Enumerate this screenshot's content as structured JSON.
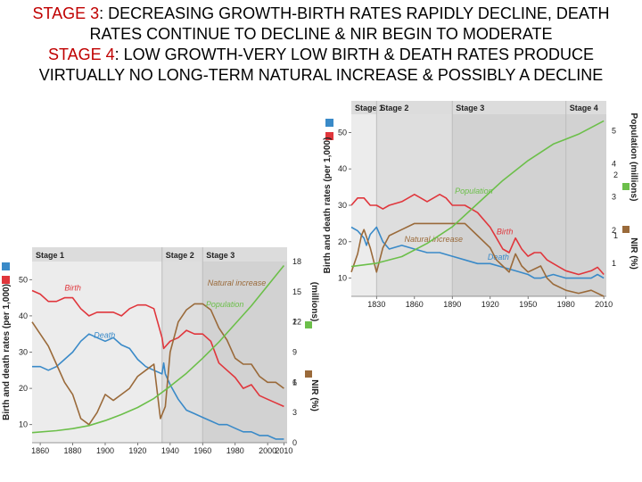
{
  "header": {
    "line1_stage": "STAGE 3",
    "line1_text": ": DECREASING GROWTH-BIRTH RATES RAPIDLY DECLINE, DEATH",
    "line2_text": "RATES CONTINUE TO DECLINE & NIR BEGIN TO MODERATE",
    "line3_stage": "STAGE 4",
    "line3_text": ": LOW GROWTH-VERY LOW BIRTH & DEATH RATES PRODUCE",
    "line4_text": "VIRTUALLY NO LONG-TERM NATURAL INCREASE & POSSIBLY A DECLINE"
  },
  "colors": {
    "birth": "#e0363c",
    "death": "#3a8ac8",
    "population": "#6cbf4a",
    "natural_increase": "#9a6a3a",
    "stage_band_light": "#ececec",
    "stage_band_mid": "#dedede",
    "stage_band_dark": "#d2d2d2"
  },
  "chart_data": [
    {
      "type": "line",
      "xlim": [
        1855,
        2012
      ],
      "ylim": [
        5,
        55
      ],
      "y2lim": [
        0,
        18
      ],
      "x_ticks": [
        1860,
        1880,
        1900,
        1920,
        1940,
        1960,
        1980,
        2000,
        2010
      ],
      "y_ticks": [
        10,
        20,
        30,
        40,
        50
      ],
      "pop_ticks": [
        0,
        3,
        6,
        9,
        12,
        15,
        18
      ],
      "nir_ticks": [
        1,
        2
      ],
      "ylabel": "Birth and death rates (per 1,000)",
      "y2label_pop": "(millions)",
      "y2label_nir": "NIR (%)",
      "stages": [
        {
          "label": "Stage 1",
          "start": 1855,
          "end": 1935
        },
        {
          "label": "Stage 2",
          "start": 1935,
          "end": 1960
        },
        {
          "label": "Stage 3",
          "start": 1960,
          "end": 2012
        }
      ],
      "series": [
        {
          "name": "Birth",
          "axis": "rate",
          "label_at": [
            1875,
            47
          ],
          "points": [
            [
              1855,
              47
            ],
            [
              1860,
              46
            ],
            [
              1865,
              44
            ],
            [
              1870,
              44
            ],
            [
              1875,
              45
            ],
            [
              1880,
              45
            ],
            [
              1885,
              42
            ],
            [
              1890,
              40
            ],
            [
              1895,
              41
            ],
            [
              1900,
              41
            ],
            [
              1905,
              41
            ],
            [
              1910,
              40
            ],
            [
              1915,
              42
            ],
            [
              1920,
              43
            ],
            [
              1925,
              43
            ],
            [
              1930,
              42
            ],
            [
              1935,
              34
            ],
            [
              1936,
              31
            ],
            [
              1940,
              33
            ],
            [
              1945,
              34
            ],
            [
              1950,
              36
            ],
            [
              1955,
              35
            ],
            [
              1960,
              35
            ],
            [
              1965,
              33
            ],
            [
              1970,
              27
            ],
            [
              1975,
              25
            ],
            [
              1980,
              23
            ],
            [
              1985,
              20
            ],
            [
              1990,
              21
            ],
            [
              1995,
              18
            ],
            [
              2000,
              17
            ],
            [
              2005,
              16
            ],
            [
              2010,
              15
            ]
          ]
        },
        {
          "name": "Death",
          "axis": "rate",
          "label_at": [
            1893,
            34
          ],
          "points": [
            [
              1855,
              26
            ],
            [
              1860,
              26
            ],
            [
              1865,
              25
            ],
            [
              1870,
              26
            ],
            [
              1875,
              28
            ],
            [
              1880,
              30
            ],
            [
              1885,
              33
            ],
            [
              1890,
              35
            ],
            [
              1895,
              34
            ],
            [
              1900,
              33
            ],
            [
              1905,
              34
            ],
            [
              1910,
              32
            ],
            [
              1915,
              31
            ],
            [
              1920,
              28
            ],
            [
              1925,
              26
            ],
            [
              1930,
              25
            ],
            [
              1935,
              24
            ],
            [
              1936,
              27
            ],
            [
              1937,
              24
            ],
            [
              1940,
              21
            ],
            [
              1945,
              17
            ],
            [
              1950,
              14
            ],
            [
              1955,
              13
            ],
            [
              1960,
              12
            ],
            [
              1965,
              11
            ],
            [
              1970,
              10
            ],
            [
              1975,
              10
            ],
            [
              1980,
              9
            ],
            [
              1985,
              8
            ],
            [
              1990,
              8
            ],
            [
              1995,
              7
            ],
            [
              2000,
              7
            ],
            [
              2005,
              6
            ],
            [
              2010,
              6
            ]
          ]
        },
        {
          "name": "Natural increase",
          "axis": "nir",
          "label_at": [
            1963,
            2.6
          ],
          "points": [
            [
              1855,
              2.0
            ],
            [
              1860,
              1.8
            ],
            [
              1865,
              1.6
            ],
            [
              1870,
              1.3
            ],
            [
              1875,
              1.0
            ],
            [
              1880,
              0.8
            ],
            [
              1885,
              0.4
            ],
            [
              1890,
              0.3
            ],
            [
              1895,
              0.5
            ],
            [
              1900,
              0.8
            ],
            [
              1905,
              0.7
            ],
            [
              1910,
              0.8
            ],
            [
              1915,
              0.9
            ],
            [
              1920,
              1.1
            ],
            [
              1925,
              1.2
            ],
            [
              1930,
              1.3
            ],
            [
              1934,
              0.4
            ],
            [
              1937,
              0.6
            ],
            [
              1940,
              1.5
            ],
            [
              1945,
              2.0
            ],
            [
              1950,
              2.2
            ],
            [
              1955,
              2.3
            ],
            [
              1960,
              2.3
            ],
            [
              1965,
              2.2
            ],
            [
              1970,
              1.9
            ],
            [
              1975,
              1.7
            ],
            [
              1980,
              1.4
            ],
            [
              1985,
              1.3
            ],
            [
              1990,
              1.3
            ],
            [
              1995,
              1.1
            ],
            [
              2000,
              1.0
            ],
            [
              2005,
              1.0
            ],
            [
              2010,
              0.9
            ]
          ]
        },
        {
          "name": "Population",
          "axis": "pop",
          "label_at": [
            1962,
            13.5
          ],
          "points": [
            [
              1855,
              1.0
            ],
            [
              1870,
              1.2
            ],
            [
              1880,
              1.4
            ],
            [
              1890,
              1.7
            ],
            [
              1900,
              2.2
            ],
            [
              1910,
              2.8
            ],
            [
              1920,
              3.5
            ],
            [
              1930,
              4.4
            ],
            [
              1940,
              5.6
            ],
            [
              1950,
              6.9
            ],
            [
              1960,
              8.4
            ],
            [
              1970,
              10.0
            ],
            [
              1980,
              11.8
            ],
            [
              1990,
              13.6
            ],
            [
              2000,
              15.6
            ],
            [
              2010,
              17.6
            ]
          ]
        }
      ]
    },
    {
      "type": "line",
      "xlim": [
        1810,
        2012
      ],
      "ylim": [
        5,
        55
      ],
      "y2lim": [
        0,
        5.5
      ],
      "x_ticks": [
        1830,
        1860,
        1890,
        1920,
        1950,
        1980,
        2010
      ],
      "y_ticks": [
        10,
        20,
        30,
        40,
        50
      ],
      "pop_ticks": [
        1,
        2,
        3,
        4,
        5
      ],
      "pop_tick_labels": [
        "1",
        "2",
        "3",
        "4",
        "5"
      ],
      "nir_ticks": [
        1,
        2
      ],
      "ylabel": "Birth and death rates (per 1,000)",
      "y2label_pop": "Population (millions)",
      "y2label_nir": "NIR (%)",
      "stages": [
        {
          "label": "Stage 1",
          "start": 1810,
          "end": 1830
        },
        {
          "label": "Stage 2",
          "start": 1830,
          "end": 1890
        },
        {
          "label": "Stage 3",
          "start": 1890,
          "end": 1980
        },
        {
          "label": "Stage 4",
          "start": 1980,
          "end": 2012
        }
      ],
      "series": [
        {
          "name": "Birth",
          "axis": "rate",
          "label_at": [
            1925,
            22
          ],
          "points": [
            [
              1810,
              30
            ],
            [
              1815,
              32
            ],
            [
              1820,
              32
            ],
            [
              1825,
              30
            ],
            [
              1830,
              30
            ],
            [
              1835,
              29
            ],
            [
              1840,
              30
            ],
            [
              1850,
              31
            ],
            [
              1860,
              33
            ],
            [
              1865,
              32
            ],
            [
              1870,
              31
            ],
            [
              1880,
              33
            ],
            [
              1885,
              32
            ],
            [
              1890,
              30
            ],
            [
              1900,
              30
            ],
            [
              1905,
              29
            ],
            [
              1910,
              28
            ],
            [
              1920,
              24
            ],
            [
              1925,
              21
            ],
            [
              1930,
              18
            ],
            [
              1935,
              17
            ],
            [
              1940,
              21
            ],
            [
              1945,
              18
            ],
            [
              1950,
              16
            ],
            [
              1955,
              17
            ],
            [
              1960,
              17
            ],
            [
              1965,
              15
            ],
            [
              1970,
              14
            ],
            [
              1975,
              13
            ],
            [
              1980,
              12
            ],
            [
              1990,
              11
            ],
            [
              2000,
              12
            ],
            [
              2005,
              13
            ],
            [
              2010,
              11
            ]
          ]
        },
        {
          "name": "Death",
          "axis": "rate",
          "label_at": [
            1918,
            15
          ],
          "points": [
            [
              1810,
              24
            ],
            [
              1815,
              23
            ],
            [
              1820,
              21
            ],
            [
              1822,
              19
            ],
            [
              1825,
              22
            ],
            [
              1830,
              24
            ],
            [
              1835,
              20
            ],
            [
              1840,
              18
            ],
            [
              1850,
              19
            ],
            [
              1860,
              18
            ],
            [
              1870,
              17
            ],
            [
              1880,
              17
            ],
            [
              1890,
              16
            ],
            [
              1900,
              15
            ],
            [
              1910,
              14
            ],
            [
              1920,
              14
            ],
            [
              1930,
              13
            ],
            [
              1940,
              12
            ],
            [
              1950,
              11
            ],
            [
              1955,
              10
            ],
            [
              1960,
              10
            ],
            [
              1970,
              11
            ],
            [
              1980,
              10
            ],
            [
              1990,
              10
            ],
            [
              2000,
              10
            ],
            [
              2005,
              11
            ],
            [
              2010,
              10
            ]
          ]
        },
        {
          "name": "Natural increase",
          "axis": "nir",
          "label_at": [
            1852,
            0.9
          ],
          "points": [
            [
              1810,
              0.4
            ],
            [
              1815,
              0.7
            ],
            [
              1818,
              1.0
            ],
            [
              1820,
              1.1
            ],
            [
              1825,
              0.8
            ],
            [
              1830,
              0.4
            ],
            [
              1835,
              0.8
            ],
            [
              1840,
              1.0
            ],
            [
              1850,
              1.1
            ],
            [
              1860,
              1.2
            ],
            [
              1870,
              1.2
            ],
            [
              1880,
              1.2
            ],
            [
              1890,
              1.2
            ],
            [
              1900,
              1.2
            ],
            [
              1910,
              1.0
            ],
            [
              1920,
              0.8
            ],
            [
              1925,
              0.6
            ],
            [
              1930,
              0.5
            ],
            [
              1935,
              0.4
            ],
            [
              1940,
              0.7
            ],
            [
              1945,
              0.5
            ],
            [
              1950,
              0.4
            ],
            [
              1960,
              0.5
            ],
            [
              1965,
              0.3
            ],
            [
              1970,
              0.2
            ],
            [
              1980,
              0.1
            ],
            [
              1990,
              0.05
            ],
            [
              2000,
              0.1
            ],
            [
              2010,
              0.0
            ]
          ]
        },
        {
          "name": "Population",
          "axis": "pop",
          "label_at": [
            1892,
            3.1
          ],
          "points": [
            [
              1810,
              0.9
            ],
            [
              1830,
              1.0
            ],
            [
              1850,
              1.2
            ],
            [
              1870,
              1.6
            ],
            [
              1890,
              2.1
            ],
            [
              1910,
              2.8
            ],
            [
              1930,
              3.5
            ],
            [
              1950,
              4.1
            ],
            [
              1970,
              4.6
            ],
            [
              1990,
              4.9
            ],
            [
              2010,
              5.3
            ]
          ]
        }
      ]
    }
  ]
}
